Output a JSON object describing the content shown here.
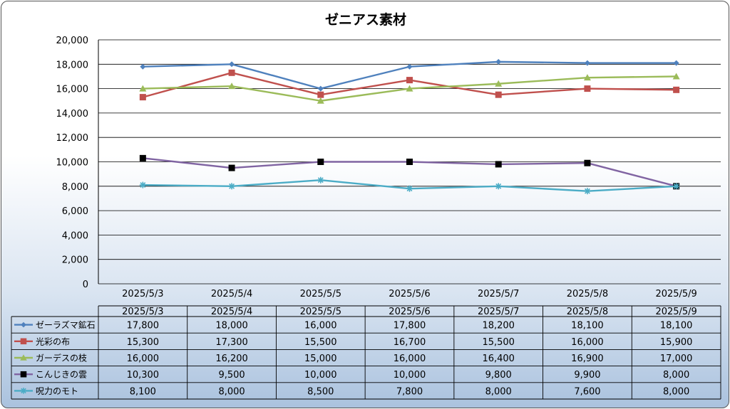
{
  "chart_data": {
    "type": "line",
    "title": "ゼニアス素材",
    "categories": [
      "2025/5/3",
      "2025/5/4",
      "2025/5/5",
      "2025/5/6",
      "2025/5/7",
      "2025/5/8",
      "2025/5/9"
    ],
    "ylim": [
      0,
      20000
    ],
    "ytick_step": 2000,
    "yticks": [
      "0",
      "2,000",
      "4,000",
      "6,000",
      "8,000",
      "10,000",
      "12,000",
      "14,000",
      "16,000",
      "18,000",
      "20,000"
    ],
    "grid": true,
    "legend": "data-table-below",
    "series": [
      {
        "name": "ゼーラズマ鉱石",
        "color": "#4f81bd",
        "marker": "diamond",
        "values": [
          17800,
          18000,
          16000,
          17800,
          18200,
          18100,
          18100
        ],
        "labels": [
          "17,800",
          "18,000",
          "16,000",
          "17,800",
          "18,200",
          "18,100",
          "18,100"
        ]
      },
      {
        "name": "光彩の布",
        "color": "#c0504d",
        "marker": "square",
        "values": [
          15300,
          17300,
          15500,
          16700,
          15500,
          16000,
          15900
        ],
        "labels": [
          "15,300",
          "17,300",
          "15,500",
          "16,700",
          "15,500",
          "16,000",
          "15,900"
        ]
      },
      {
        "name": "ガーデスの枝",
        "color": "#9bbb59",
        "marker": "triangle",
        "values": [
          16000,
          16200,
          15000,
          16000,
          16400,
          16900,
          17000
        ],
        "labels": [
          "16,000",
          "16,200",
          "15,000",
          "16,000",
          "16,400",
          "16,900",
          "17,000"
        ]
      },
      {
        "name": "こんじきの雲",
        "color": "#8064a2",
        "marker": "blacksquare",
        "values": [
          10300,
          9500,
          10000,
          10000,
          9800,
          9900,
          8000
        ],
        "labels": [
          "10,300",
          "9,500",
          "10,000",
          "10,000",
          "9,800",
          "9,900",
          "8,000"
        ]
      },
      {
        "name": "呪力のモト",
        "color": "#4bacc6",
        "marker": "star",
        "values": [
          8100,
          8000,
          8500,
          7800,
          8000,
          7600,
          8000
        ],
        "labels": [
          "8,100",
          "8,000",
          "8,500",
          "7,800",
          "8,000",
          "7,600",
          "8,000"
        ]
      }
    ]
  }
}
